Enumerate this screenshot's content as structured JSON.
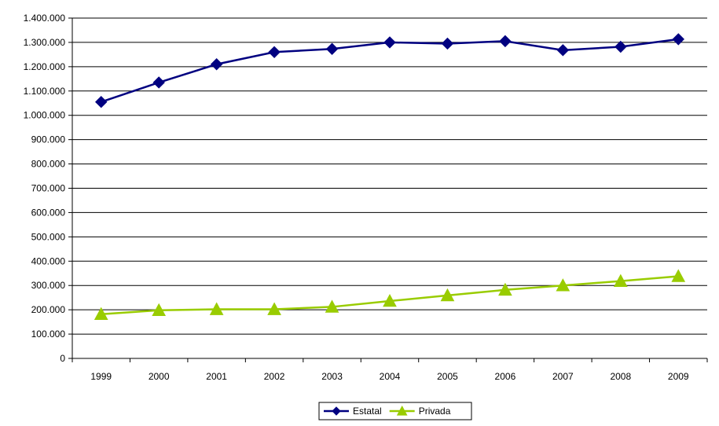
{
  "chart_data": {
    "type": "line",
    "title": "",
    "xlabel": "",
    "ylabel": "",
    "categories": [
      "1999",
      "2000",
      "2001",
      "2002",
      "2003",
      "2004",
      "2005",
      "2006",
      "2007",
      "2008",
      "2009"
    ],
    "series": [
      {
        "name": "Estatal",
        "color": "#000080",
        "marker": "diamond",
        "values": [
          1055000,
          1135000,
          1210000,
          1260000,
          1273000,
          1300000,
          1295000,
          1305000,
          1268000,
          1282000,
          1313000
        ]
      },
      {
        "name": "Privada",
        "color": "#99CC00",
        "marker": "triangle",
        "values": [
          182000,
          198000,
          202000,
          202000,
          212000,
          236000,
          259000,
          282000,
          300000,
          318000,
          338000
        ]
      }
    ],
    "ylim": [
      0,
      1400000
    ],
    "ystep": 100000,
    "y_tick_labels": [
      "0",
      "100.000",
      "200.000",
      "300.000",
      "400.000",
      "500.000",
      "600.000",
      "700.000",
      "800.000",
      "900.000",
      "1.000.000",
      "1.100.000",
      "1.200.000",
      "1.300.000",
      "1.400.000"
    ],
    "grid": "horizontal",
    "legend_position": "bottom"
  }
}
